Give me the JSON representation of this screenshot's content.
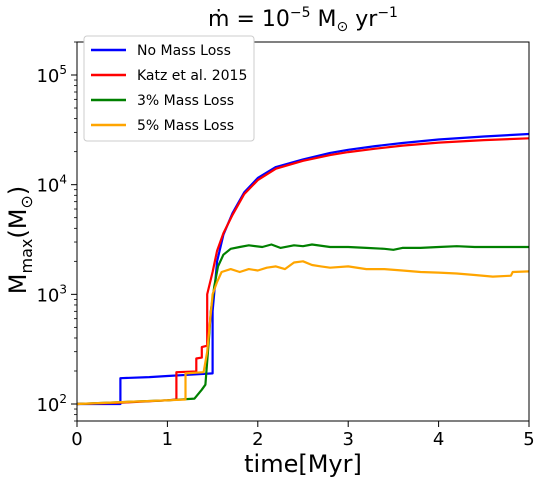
{
  "chart_data": {
    "type": "line",
    "title_main": "ṁ = 10",
    "title_exp": "−5",
    "title_unit": " M",
    "title_sun": "⊙",
    "title_yr": " yr",
    "title_yr_exp": "−1",
    "xlabel": "time[Myr]",
    "ylabel_main": "M",
    "ylabel_sub": "max",
    "ylabel_paren_open": "(M",
    "ylabel_sun": "⊙",
    "ylabel_paren_close": ")",
    "xlim": [
      0,
      5
    ],
    "ylim": [
      70,
      200000
    ],
    "yscale": "log",
    "x_ticks": [
      0,
      1,
      2,
      3,
      4,
      5
    ],
    "x_tick_labels": [
      "0",
      "1",
      "2",
      "3",
      "4",
      "5"
    ],
    "y_ticks": [
      100,
      1000,
      10000,
      100000
    ],
    "y_tick_base": "10",
    "y_tick_exps": [
      "2",
      "3",
      "4",
      "5"
    ],
    "grid": false,
    "legend_position": "top-left",
    "series": [
      {
        "name": "No Mass Loss",
        "color": "#0000ff",
        "points": [
          [
            0,
            100
          ],
          [
            0.48,
            100
          ],
          [
            0.48,
            172
          ],
          [
            0.8,
            176
          ],
          [
            1.0,
            180
          ],
          [
            1.25,
            185
          ],
          [
            1.5,
            190
          ],
          [
            1.5,
            700
          ],
          [
            1.55,
            2000
          ],
          [
            1.62,
            3500
          ],
          [
            1.72,
            5500
          ],
          [
            1.85,
            8500
          ],
          [
            2.0,
            11500
          ],
          [
            2.2,
            14500
          ],
          [
            2.5,
            17000
          ],
          [
            2.8,
            19500
          ],
          [
            3.0,
            20800
          ],
          [
            3.3,
            22500
          ],
          [
            3.6,
            24000
          ],
          [
            4.0,
            25800
          ],
          [
            4.5,
            27500
          ],
          [
            5.0,
            29000
          ]
        ]
      },
      {
        "name": "Katz et al.  2015",
        "color": "#ff0000",
        "points": [
          [
            0,
            100
          ],
          [
            0.5,
            103
          ],
          [
            1.0,
            108
          ],
          [
            1.1,
            110
          ],
          [
            1.1,
            195
          ],
          [
            1.32,
            198
          ],
          [
            1.32,
            260
          ],
          [
            1.38,
            265
          ],
          [
            1.38,
            330
          ],
          [
            1.44,
            340
          ],
          [
            1.44,
            1000
          ],
          [
            1.5,
            1600
          ],
          [
            1.55,
            2500
          ],
          [
            1.62,
            3600
          ],
          [
            1.72,
            5300
          ],
          [
            1.85,
            8200
          ],
          [
            2.0,
            11000
          ],
          [
            2.2,
            14000
          ],
          [
            2.5,
            16500
          ],
          [
            2.8,
            18600
          ],
          [
            3.0,
            19800
          ],
          [
            3.3,
            21300
          ],
          [
            3.6,
            22700
          ],
          [
            4.0,
            24200
          ],
          [
            4.5,
            25500
          ],
          [
            5.0,
            26500
          ]
        ]
      },
      {
        "name": "3% Mass Loss",
        "color": "#008000",
        "points": [
          [
            0,
            100
          ],
          [
            0.5,
            104
          ],
          [
            1.0,
            108
          ],
          [
            1.3,
            112
          ],
          [
            1.38,
            135
          ],
          [
            1.42,
            150
          ],
          [
            1.46,
            400
          ],
          [
            1.48,
            700
          ],
          [
            1.52,
            1200
          ],
          [
            1.56,
            1800
          ],
          [
            1.62,
            2300
          ],
          [
            1.7,
            2600
          ],
          [
            1.8,
            2700
          ],
          [
            1.9,
            2800
          ],
          [
            2.05,
            2700
          ],
          [
            2.15,
            2850
          ],
          [
            2.25,
            2650
          ],
          [
            2.4,
            2800
          ],
          [
            2.5,
            2750
          ],
          [
            2.6,
            2850
          ],
          [
            2.8,
            2700
          ],
          [
            3.0,
            2700
          ],
          [
            3.2,
            2650
          ],
          [
            3.4,
            2600
          ],
          [
            3.5,
            2550
          ],
          [
            3.6,
            2650
          ],
          [
            3.8,
            2650
          ],
          [
            4.0,
            2700
          ],
          [
            4.2,
            2750
          ],
          [
            4.4,
            2700
          ],
          [
            4.6,
            2700
          ],
          [
            5.0,
            2700
          ]
        ]
      },
      {
        "name": "5% Mass Loss",
        "color": "#ffa500",
        "points": [
          [
            0,
            100
          ],
          [
            0.5,
            104
          ],
          [
            1.0,
            108
          ],
          [
            1.2,
            110
          ],
          [
            1.2,
            190
          ],
          [
            1.4,
            195
          ],
          [
            1.44,
            300
          ],
          [
            1.47,
            550
          ],
          [
            1.5,
            1000
          ],
          [
            1.55,
            1300
          ],
          [
            1.6,
            1600
          ],
          [
            1.7,
            1700
          ],
          [
            1.8,
            1600
          ],
          [
            1.9,
            1700
          ],
          [
            2.0,
            1650
          ],
          [
            2.1,
            1750
          ],
          [
            2.2,
            1800
          ],
          [
            2.3,
            1700
          ],
          [
            2.4,
            1950
          ],
          [
            2.5,
            2000
          ],
          [
            2.6,
            1850
          ],
          [
            2.7,
            1800
          ],
          [
            2.8,
            1750
          ],
          [
            3.0,
            1800
          ],
          [
            3.2,
            1700
          ],
          [
            3.4,
            1700
          ],
          [
            3.6,
            1650
          ],
          [
            3.8,
            1600
          ],
          [
            4.0,
            1580
          ],
          [
            4.2,
            1550
          ],
          [
            4.4,
            1500
          ],
          [
            4.6,
            1450
          ],
          [
            4.8,
            1480
          ],
          [
            4.82,
            1600
          ],
          [
            5.0,
            1620
          ]
        ]
      }
    ]
  }
}
